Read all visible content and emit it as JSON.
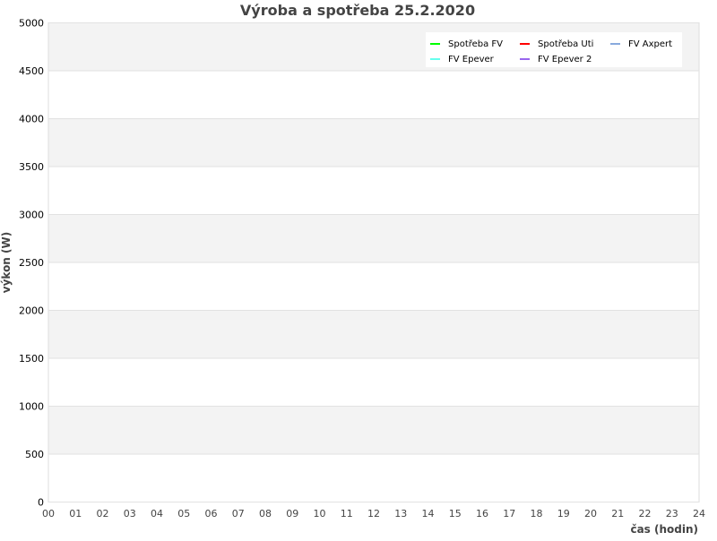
{
  "chart_data": {
    "type": "line",
    "title": "Výroba a spotřeba 25.2.2020",
    "xlabel": "čas (hodin)",
    "ylabel": "výkon (W)",
    "xlim": [
      0,
      24
    ],
    "ylim": [
      0,
      5000
    ],
    "x_ticks": [
      "00",
      "01",
      "02",
      "03",
      "04",
      "05",
      "06",
      "07",
      "08",
      "09",
      "10",
      "11",
      "12",
      "13",
      "14",
      "15",
      "16",
      "17",
      "18",
      "19",
      "20",
      "21",
      "22",
      "23",
      "24"
    ],
    "y_ticks": [
      0,
      500,
      1000,
      1500,
      2000,
      2500,
      3000,
      3500,
      4000,
      4500,
      5000
    ],
    "grid": true,
    "legend_position": "top-right",
    "series": [
      {
        "name": "Spotřeba FV",
        "color": "#00ff00",
        "values": []
      },
      {
        "name": "Spotřeba Uti",
        "color": "#ff0000",
        "values": []
      },
      {
        "name": "FV Axpert",
        "color": "#88aadd",
        "values": []
      },
      {
        "name": "FV Epever",
        "color": "#66ffee",
        "values": []
      },
      {
        "name": "FV Epever 2",
        "color": "#9966ee",
        "values": []
      }
    ]
  }
}
